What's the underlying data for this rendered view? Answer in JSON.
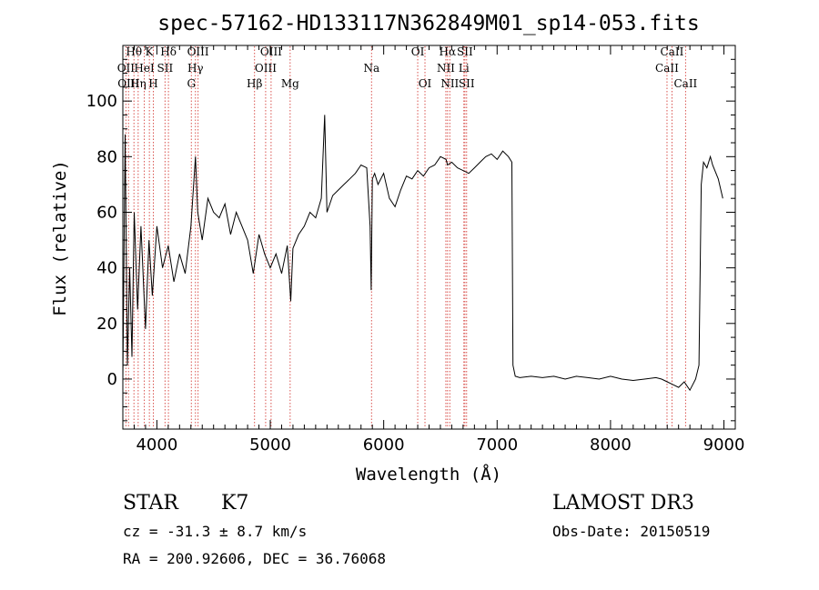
{
  "chart_data": {
    "type": "line",
    "title": "spec-57162-HD133117N362849M01_sp14-053.fits",
    "xlabel": "Wavelength (Å)",
    "ylabel": "Flux (relative)",
    "xlim": [
      3700,
      9100
    ],
    "ylim": [
      -18,
      120
    ],
    "x_ticks": [
      4000,
      5000,
      6000,
      7000,
      8000,
      9000
    ],
    "y_ticks": [
      0,
      20,
      40,
      60,
      80,
      100
    ],
    "series": [
      {
        "x": [
          3700,
          3720,
          3740,
          3760,
          3780,
          3800,
          3830,
          3860,
          3900,
          3930,
          3960,
          4000,
          4050,
          4100,
          4150,
          4200,
          4250,
          4300,
          4340,
          4360,
          4400,
          4450,
          4500,
          4550,
          4600,
          4650,
          4700,
          4750,
          4800,
          4850,
          4900,
          4950,
          5000,
          5050,
          5100,
          5150,
          5180,
          5200,
          5250,
          5300,
          5350,
          5400,
          5450,
          5480,
          5500,
          5550,
          5600,
          5650,
          5700,
          5750,
          5800,
          5850,
          5880,
          5890,
          5900,
          5920,
          5950,
          6000,
          6050,
          6100,
          6150,
          6200,
          6250,
          6300,
          6350,
          6400,
          6450,
          6500,
          6550,
          6563,
          6600,
          6650,
          6700,
          6750,
          6800,
          6850,
          6900,
          6950,
          7000,
          7050,
          7100,
          7130,
          7140,
          7160,
          7200,
          7300,
          7400,
          7500,
          7600,
          7700,
          7800,
          7900,
          8000,
          8100,
          8200,
          8300,
          8400,
          8450,
          8500,
          8550,
          8600,
          8650,
          8700,
          8750,
          8780,
          8800,
          8820,
          8850,
          8880,
          8900,
          8950,
          8990
        ],
        "y": [
          0,
          88,
          5,
          40,
          8,
          60,
          25,
          55,
          18,
          50,
          30,
          55,
          40,
          48,
          35,
          45,
          38,
          55,
          80,
          60,
          50,
          65,
          60,
          58,
          63,
          52,
          60,
          55,
          50,
          38,
          52,
          45,
          40,
          45,
          38,
          48,
          28,
          47,
          52,
          55,
          60,
          58,
          65,
          95,
          60,
          66,
          68,
          70,
          72,
          74,
          77,
          76,
          55,
          32,
          72,
          74,
          70,
          74,
          65,
          62,
          68,
          73,
          72,
          75,
          73,
          76,
          77,
          80,
          79,
          77,
          78,
          76,
          75,
          74,
          76,
          78,
          80,
          81,
          79,
          82,
          80,
          78,
          5,
          1,
          0.5,
          1,
          0.5,
          1,
          0,
          1,
          0.5,
          0,
          1,
          0,
          -0.5,
          0,
          0.5,
          0,
          -1,
          -2,
          -3,
          -1,
          -4,
          0,
          5,
          70,
          78,
          76,
          80,
          77,
          72,
          65
        ]
      }
    ],
    "lines": [
      {
        "w": 3727,
        "label": "OII",
        "row": 1
      },
      {
        "w": 3750,
        "label": "OIII",
        "row": 2
      },
      {
        "w": 3798,
        "label": "Hθ",
        "row": 0
      },
      {
        "w": 3835,
        "label": "Hη",
        "row": 2
      },
      {
        "w": 3889,
        "label": "HeI",
        "row": 1
      },
      {
        "w": 3934,
        "label": "K",
        "row": 0
      },
      {
        "w": 3969,
        "label": "H",
        "row": 2
      },
      {
        "w": 4072,
        "label": "SII",
        "row": 1
      },
      {
        "w": 4102,
        "label": "Hδ",
        "row": 0
      },
      {
        "w": 4304,
        "label": "G",
        "row": 2
      },
      {
        "w": 4340,
        "label": "Hγ",
        "row": 1
      },
      {
        "w": 4363,
        "label": "OIII",
        "row": 0
      },
      {
        "w": 4861,
        "label": "Hβ",
        "row": 2
      },
      {
        "w": 4959,
        "label": "OIII",
        "row": 1
      },
      {
        "w": 5007,
        "label": "OIII",
        "row": 0
      },
      {
        "w": 5175,
        "label": "Mg",
        "row": 2
      },
      {
        "w": 5893,
        "label": "Na",
        "row": 1
      },
      {
        "w": 6300,
        "label": "OI",
        "row": 0
      },
      {
        "w": 6364,
        "label": "OI",
        "row": 2
      },
      {
        "w": 6548,
        "label": "NII",
        "row": 1
      },
      {
        "w": 6563,
        "label": "Hα",
        "row": 0
      },
      {
        "w": 6583,
        "label": "NII",
        "row": 2
      },
      {
        "w": 6707,
        "label": "Li",
        "row": 1
      },
      {
        "w": 6716,
        "label": "SII",
        "row": 0
      },
      {
        "w": 6731,
        "label": "SII",
        "row": 2
      },
      {
        "w": 8498,
        "label": "CaII",
        "row": 1
      },
      {
        "w": 8542,
        "label": "CaII",
        "row": 0
      },
      {
        "w": 8662,
        "label": "CaII",
        "row": 2
      }
    ],
    "line_color": "#d9534f",
    "spectrum_color": "#000000",
    "grid": false
  },
  "info": {
    "object_class": "STAR",
    "subclass": "K7",
    "survey": "LAMOST DR3",
    "cz": "cz = -31.3 ± 8.7 km/s",
    "obs_date": "Obs-Date: 20150519",
    "radec": "RA = 200.92606, DEC =  36.76068"
  }
}
